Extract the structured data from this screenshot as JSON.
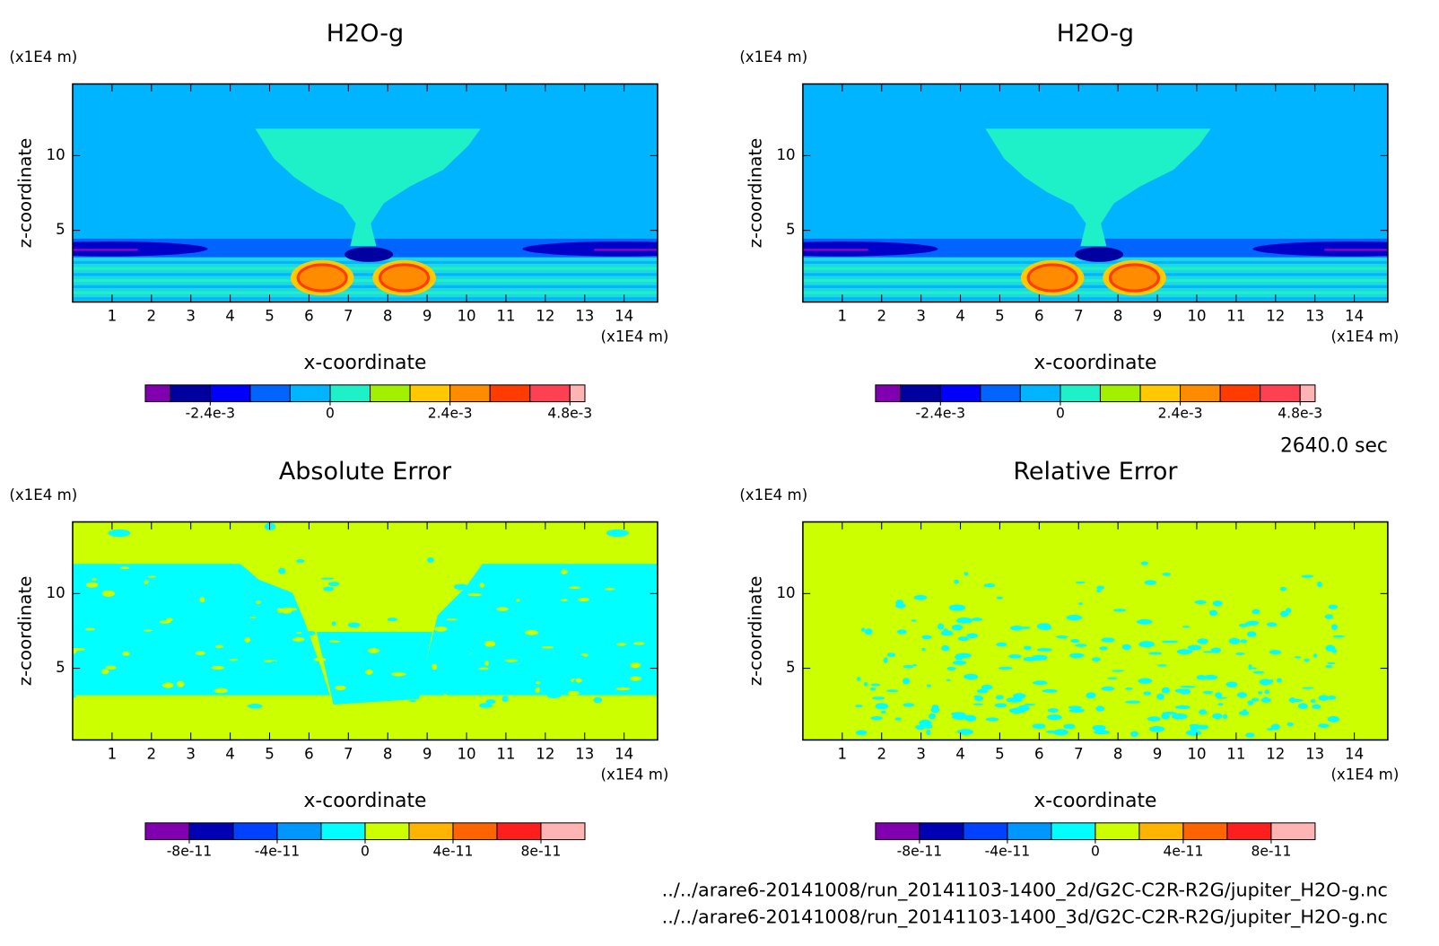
{
  "chart_data": [
    {
      "type": "contour",
      "title": "H2O-g",
      "y_unit": "(x1E4 m)",
      "x_unit": "(x1E4 m)",
      "xlabel": "x-coordinate",
      "ylabel": "z-coordinate",
      "xlim": [
        0,
        14.85
      ],
      "ylim": [
        0.2,
        14.8
      ],
      "xticks": [
        1,
        2,
        3,
        4,
        5,
        6,
        7,
        8,
        9,
        10,
        11,
        12,
        13,
        14
      ],
      "yticks": [
        5,
        10
      ],
      "colorbar": {
        "levels": [
          -0.0037,
          -0.0032,
          -0.0024,
          -0.0016,
          -0.0008,
          0,
          0.0008,
          0.0016,
          0.0024,
          0.0032,
          0.004,
          0.0048,
          0.0051
        ],
        "colors": [
          "#8000b0",
          "#0000a0",
          "#0000ff",
          "#0064ff",
          "#00b4ff",
          "#1ef0c8",
          "#a0f000",
          "#ffc800",
          "#ff8c00",
          "#ff3c00",
          "#ff4050",
          "#ffb4b4"
        ],
        "ticks": [
          {
            "value": -0.0024,
            "label": "-2.4e-3"
          },
          0,
          {
            "value": 0.0024,
            "label": "2.4e-3"
          },
          {
            "value": 0.0048,
            "label": "4.8e-3"
          }
        ]
      }
    },
    {
      "type": "contour",
      "title": "H2O-g",
      "y_unit": "(x1E4 m)",
      "x_unit": "(x1E4 m)",
      "xlabel": "x-coordinate",
      "ylabel": "z-coordinate",
      "xlim": [
        0,
        14.85
      ],
      "ylim": [
        0.2,
        14.8
      ],
      "xticks": [
        1,
        2,
        3,
        4,
        5,
        6,
        7,
        8,
        9,
        10,
        11,
        12,
        13,
        14
      ],
      "yticks": [
        5,
        10
      ],
      "colorbar": {
        "levels": [
          -0.0037,
          -0.0032,
          -0.0024,
          -0.0016,
          -0.0008,
          0,
          0.0008,
          0.0016,
          0.0024,
          0.0032,
          0.004,
          0.0048,
          0.0051
        ],
        "colors": [
          "#8000b0",
          "#0000a0",
          "#0000ff",
          "#0064ff",
          "#00b4ff",
          "#1ef0c8",
          "#a0f000",
          "#ffc800",
          "#ff8c00",
          "#ff3c00",
          "#ff4050",
          "#ffb4b4"
        ],
        "ticks": [
          {
            "value": -0.0024,
            "label": "-2.4e-3"
          },
          0,
          {
            "value": 0.0024,
            "label": "2.4e-3"
          },
          {
            "value": 0.0048,
            "label": "4.8e-3"
          }
        ]
      }
    },
    {
      "type": "contour",
      "title": "Absolute Error",
      "y_unit": "(x1E4 m)",
      "x_unit": "(x1E4 m)",
      "xlabel": "x-coordinate",
      "ylabel": "z-coordinate",
      "xlim": [
        0,
        14.85
      ],
      "ylim": [
        0.2,
        14.8
      ],
      "xticks": [
        1,
        2,
        3,
        4,
        5,
        6,
        7,
        8,
        9,
        10,
        11,
        12,
        13,
        14
      ],
      "yticks": [
        5,
        10
      ],
      "colorbar": {
        "levels": [
          -1e-10,
          -8e-11,
          -6e-11,
          -4e-11,
          -2e-11,
          0,
          2e-11,
          4e-11,
          6e-11,
          8e-11,
          1e-10
        ],
        "colors": [
          "#8000b0",
          "#0000b4",
          "#0040ff",
          "#0096ff",
          "#00ffff",
          "#ccff00",
          "#ffb400",
          "#ff6400",
          "#ff1e1e",
          "#ffb4b4"
        ],
        "ticks": [
          {
            "value": -8e-11,
            "label": "-8e-11"
          },
          {
            "value": -4e-11,
            "label": "-4e-11"
          },
          0,
          {
            "value": 4e-11,
            "label": "4e-11"
          },
          {
            "value": 8e-11,
            "label": "8e-11"
          }
        ]
      }
    },
    {
      "type": "contour",
      "title": "Relative Error",
      "y_unit": "(x1E4 m)",
      "x_unit": "(x1E4 m)",
      "xlabel": "x-coordinate",
      "ylabel": "z-coordinate",
      "xlim": [
        0,
        14.85
      ],
      "ylim": [
        0.2,
        14.8
      ],
      "xticks": [
        1,
        2,
        3,
        4,
        5,
        6,
        7,
        8,
        9,
        10,
        11,
        12,
        13,
        14
      ],
      "yticks": [
        5,
        10
      ],
      "colorbar": {
        "levels": [
          -1e-10,
          -8e-11,
          -6e-11,
          -4e-11,
          -2e-11,
          0,
          2e-11,
          4e-11,
          6e-11,
          8e-11,
          1e-10
        ],
        "colors": [
          "#8000b0",
          "#0000b4",
          "#0040ff",
          "#0096ff",
          "#00ffff",
          "#ccff00",
          "#ffb400",
          "#ff6400",
          "#ff1e1e",
          "#ffb4b4"
        ],
        "ticks": [
          {
            "value": -8e-11,
            "label": "-8e-11"
          },
          {
            "value": -4e-11,
            "label": "-4e-11"
          },
          0,
          {
            "value": 4e-11,
            "label": "4e-11"
          },
          {
            "value": 8e-11,
            "label": "8e-11"
          }
        ]
      }
    }
  ],
  "time_label": "2640.0 sec",
  "files": [
    "../../arare6-20141008/run_20141103-1400_2d/G2C-C2R-R2G/jupiter_H2O-g.nc",
    "../../arare6-20141008/run_20141103-1400_3d/G2C-C2R-R2G/jupiter_H2O-g.nc"
  ]
}
